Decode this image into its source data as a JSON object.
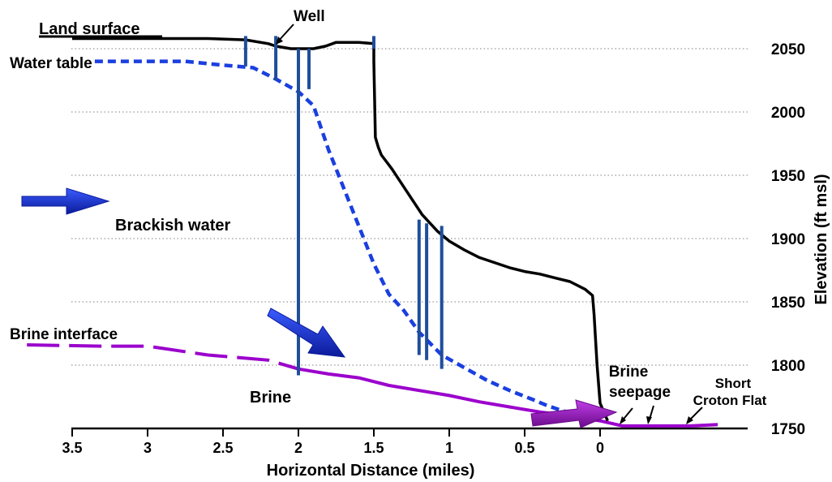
{
  "chart_data": {
    "type": "diagram",
    "xlabel": "Horizontal Distance (miles)",
    "ylabel": "Elevation (ft msl)",
    "xlim": [
      3.5,
      -0.8
    ],
    "ylim": [
      1750,
      2050
    ],
    "x_ticks": [
      "3.5",
      "3",
      "2.5",
      "2",
      "1.5",
      "1",
      "0.5",
      "0"
    ],
    "y_ticks": [
      "2050",
      "2000",
      "1950",
      "1900",
      "1850",
      "1800",
      "1750"
    ],
    "labels": {
      "land_surface": "Land surface",
      "water_table": "Water table",
      "well": "Well",
      "brackish_water": "Brackish water",
      "brine_interface": "Brine interface",
      "brine": "Brine",
      "brine_seepage_1": "Brine",
      "brine_seepage_2": "seepage",
      "croton_1": "Short",
      "croton_2": "Croton Flat"
    },
    "colors": {
      "land_surface": "#000000",
      "water_table": "#1a3fe0",
      "brine_interface": "#9b00cc",
      "wells": "#1f4e9a",
      "arrow_blue": "#1428c8",
      "arrow_purple": "#a010c8",
      "grid": "#aaaaaa"
    },
    "land_surface": [
      [
        3.5,
        2058
      ],
      [
        2.6,
        2058
      ],
      [
        2.35,
        2057
      ],
      [
        2.2,
        2054
      ],
      [
        2.15,
        2052
      ],
      [
        2.05,
        2050
      ],
      [
        1.9,
        2050
      ],
      [
        1.82,
        2052
      ],
      [
        1.75,
        2055
      ],
      [
        1.6,
        2055
      ],
      [
        1.5,
        2054
      ],
      [
        1.5,
        2040
      ],
      [
        1.49,
        1980
      ],
      [
        1.47,
        1972
      ],
      [
        1.45,
        1966
      ],
      [
        1.38,
        1955
      ],
      [
        1.28,
        1937
      ],
      [
        1.18,
        1919
      ],
      [
        1.08,
        1906
      ],
      [
        1.0,
        1898
      ],
      [
        0.9,
        1891
      ],
      [
        0.8,
        1885
      ],
      [
        0.7,
        1881
      ],
      [
        0.6,
        1877
      ],
      [
        0.5,
        1874
      ],
      [
        0.4,
        1872
      ],
      [
        0.3,
        1869
      ],
      [
        0.2,
        1866
      ],
      [
        0.1,
        1860
      ],
      [
        0.05,
        1855
      ],
      [
        0.04,
        1840
      ],
      [
        0.02,
        1800
      ],
      [
        0.0,
        1770
      ],
      [
        -0.05,
        1756
      ]
    ],
    "water_table": [
      [
        3.35,
        2040
      ],
      [
        3.0,
        2040
      ],
      [
        2.75,
        2040
      ],
      [
        2.5,
        2037
      ],
      [
        2.3,
        2035
      ],
      [
        2.15,
        2026
      ],
      [
        2.0,
        2016
      ],
      [
        1.9,
        2005
      ],
      [
        1.8,
        1970
      ],
      [
        1.7,
        1940
      ],
      [
        1.6,
        1910
      ],
      [
        1.5,
        1880
      ],
      [
        1.4,
        1856
      ],
      [
        1.3,
        1843
      ],
      [
        1.2,
        1826
      ],
      [
        1.05,
        1808
      ],
      [
        0.9,
        1798
      ],
      [
        0.75,
        1788
      ],
      [
        0.6,
        1780
      ],
      [
        0.45,
        1773
      ],
      [
        0.35,
        1768
      ],
      [
        0.25,
        1764
      ],
      [
        0.15,
        1761
      ]
    ],
    "brine_interface": [
      [
        3.8,
        1816
      ],
      [
        3.3,
        1815
      ],
      [
        3.0,
        1815
      ],
      [
        2.6,
        1808
      ],
      [
        2.4,
        1806
      ],
      [
        2.2,
        1804
      ],
      [
        2.0,
        1797
      ],
      [
        1.8,
        1793
      ],
      [
        1.6,
        1790
      ],
      [
        1.4,
        1784
      ],
      [
        1.2,
        1780
      ],
      [
        1.0,
        1776
      ],
      [
        0.8,
        1771
      ],
      [
        0.6,
        1767
      ],
      [
        0.4,
        1763
      ],
      [
        0.2,
        1760
      ],
      [
        0.0,
        1756
      ],
      [
        -0.15,
        1752
      ],
      [
        -0.4,
        1752
      ],
      [
        -0.6,
        1752
      ],
      [
        -0.78,
        1753
      ]
    ],
    "wells": [
      [
        2.35,
        2060,
        2036
      ],
      [
        2.15,
        2060,
        2025
      ],
      [
        2.0,
        2050,
        1792
      ],
      [
        1.93,
        2050,
        2018
      ],
      [
        1.5,
        2060,
        2050
      ],
      [
        1.2,
        1915,
        1808
      ],
      [
        1.15,
        1912,
        1804
      ],
      [
        1.05,
        1910,
        1797
      ]
    ]
  }
}
